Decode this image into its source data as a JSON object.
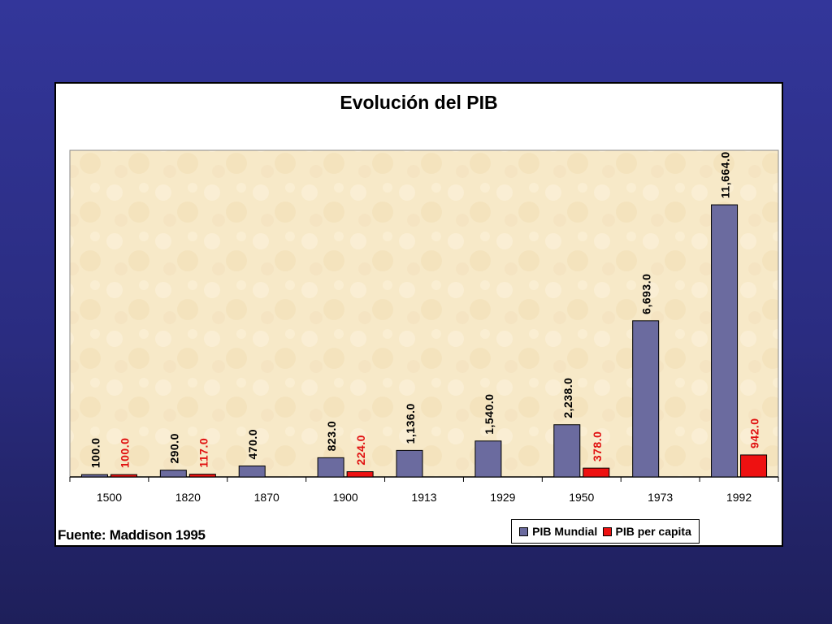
{
  "chart_data": {
    "type": "bar",
    "title": "Evolución del PIB",
    "categories": [
      "1500",
      "1820",
      "1870",
      "1900",
      "1913",
      "1929",
      "1950",
      "1973",
      "1992"
    ],
    "series": [
      {
        "name": "PIB Mundial",
        "color": "#6b6b9f",
        "values": [
          100.0,
          290.0,
          470.0,
          823.0,
          1136.0,
          1540.0,
          2238.0,
          6693.0,
          11664.0
        ],
        "labels": [
          "100.0",
          "290.0",
          "470.0",
          "823.0",
          "1,136.0",
          "1,540.0",
          "2,238.0",
          "6,693.0",
          "11,664.0"
        ]
      },
      {
        "name": "PIB per capita",
        "color": "#ee1111",
        "values": [
          100.0,
          117.0,
          null,
          224.0,
          null,
          null,
          378.0,
          null,
          942.0
        ],
        "labels": [
          "100.0",
          "117.0",
          "",
          "224.0",
          "",
          "",
          "378.0",
          "",
          "942.0"
        ]
      }
    ],
    "ylim": [
      0,
      14000
    ],
    "grid": false,
    "legend": "bottom-right",
    "source": "Fuente: Maddison 1995"
  }
}
